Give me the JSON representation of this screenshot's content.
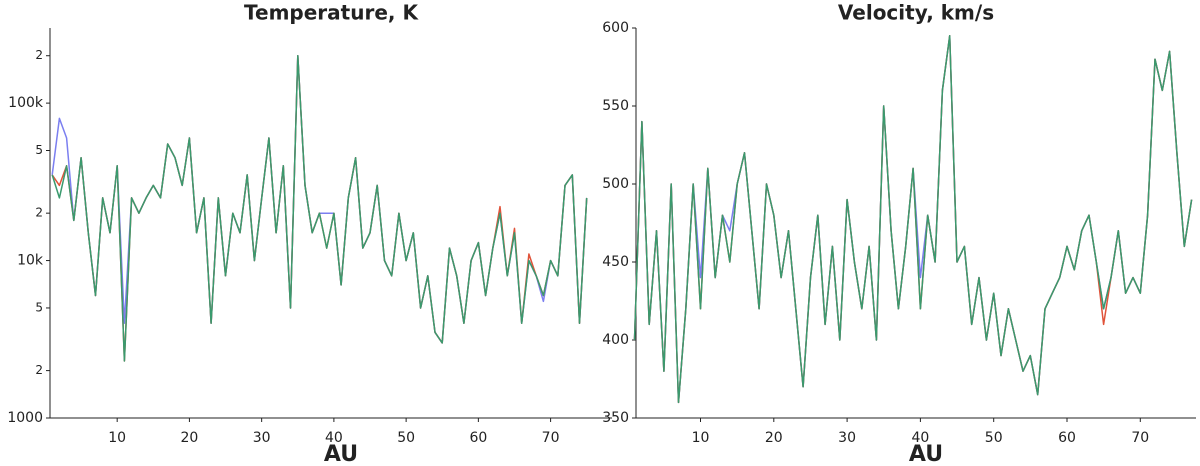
{
  "chart_data": [
    {
      "type": "line",
      "title": "Temperature, K",
      "xlabel": "AU",
      "ylog": true,
      "xlim": [
        0.7,
        78.5
      ],
      "xticks": [
        10,
        20,
        30,
        40,
        50,
        60,
        70
      ],
      "ylim": [
        1000,
        300000
      ],
      "yticks": [
        1000,
        {
          "value": 2000,
          "label": "2"
        },
        {
          "value": 5000,
          "label": "5"
        },
        {
          "value": 10000,
          "label": "10k"
        },
        {
          "value": 20000,
          "label": "2"
        },
        {
          "value": 50000,
          "label": "5"
        },
        {
          "value": 100000,
          "label": "100k"
        },
        {
          "value": 200000,
          "label": "2"
        }
      ],
      "x": [
        1,
        2,
        3,
        4,
        5,
        6,
        7,
        8,
        9,
        10,
        11,
        12,
        13,
        14,
        15,
        16,
        17,
        18,
        19,
        20,
        21,
        22,
        23,
        24,
        25,
        26,
        27,
        28,
        29,
        30,
        31,
        32,
        33,
        34,
        35,
        36,
        37,
        38,
        39,
        40,
        41,
        42,
        43,
        44,
        45,
        46,
        47,
        48,
        49,
        50,
        51,
        52,
        53,
        54,
        55,
        56,
        57,
        58,
        59,
        60,
        61,
        62,
        63,
        64,
        65,
        66,
        67,
        68,
        69,
        70,
        71,
        72,
        73,
        74,
        75
      ],
      "series": [
        {
          "color": "#7b7ff0",
          "values": [
            35000,
            80000,
            60000,
            18000,
            45000,
            15000,
            6000,
            25000,
            15000,
            40000,
            4000,
            25000,
            20000,
            25000,
            30000,
            25000,
            55000,
            45000,
            30000,
            60000,
            15000,
            25000,
            4000,
            25000,
            8000,
            20000,
            15000,
            35000,
            10000,
            25000,
            60000,
            15000,
            40000,
            5000,
            200000,
            30000,
            15000,
            20000,
            20000,
            20000,
            7000,
            25000,
            45000,
            12000,
            15000,
            30000,
            10000,
            8000,
            20000,
            10000,
            15000,
            5000,
            8000,
            3500,
            3000,
            12000,
            8000,
            4000,
            10000,
            13000,
            6000,
            12000,
            20000,
            8000,
            15000,
            4000,
            10000,
            8000,
            5500,
            10000,
            8000,
            30000,
            35000,
            4000,
            25000
          ]
        },
        {
          "color": "#e0533a",
          "values": [
            35000,
            30000,
            40000,
            18000,
            45000,
            15000,
            6000,
            25000,
            15000,
            40000,
            2300,
            25000,
            20000,
            25000,
            30000,
            25000,
            55000,
            45000,
            30000,
            60000,
            15000,
            25000,
            4000,
            25000,
            8000,
            20000,
            15000,
            35000,
            10000,
            25000,
            60000,
            15000,
            40000,
            5000,
            200000,
            30000,
            15000,
            20000,
            12000,
            20000,
            7000,
            25000,
            45000,
            12000,
            15000,
            30000,
            10000,
            8000,
            20000,
            10000,
            15000,
            5000,
            8000,
            3500,
            3000,
            12000,
            8000,
            4000,
            10000,
            13000,
            6000,
            12000,
            22000,
            8000,
            16000,
            4000,
            11000,
            8000,
            6000,
            10000,
            8000,
            30000,
            35000,
            4000,
            25000
          ]
        },
        {
          "color": "#3a9a6e",
          "values": [
            35000,
            25000,
            40000,
            18000,
            45000,
            15000,
            6000,
            25000,
            15000,
            40000,
            2300,
            25000,
            20000,
            25000,
            30000,
            25000,
            55000,
            45000,
            30000,
            60000,
            15000,
            25000,
            4000,
            25000,
            8000,
            20000,
            15000,
            35000,
            10000,
            25000,
            60000,
            15000,
            40000,
            5000,
            200000,
            30000,
            15000,
            20000,
            12000,
            20000,
            7000,
            25000,
            45000,
            12000,
            15000,
            30000,
            10000,
            8000,
            20000,
            10000,
            15000,
            5000,
            8000,
            3500,
            3000,
            12000,
            8000,
            4000,
            10000,
            13000,
            6000,
            12000,
            20000,
            8000,
            15000,
            4000,
            10000,
            8000,
            6000,
            10000,
            8000,
            30000,
            35000,
            4000,
            25000
          ]
        }
      ]
    },
    {
      "type": "line",
      "title": "Velocity, km/s",
      "xlabel": "AU",
      "ylog": false,
      "xlim": [
        1.2,
        77.6
      ],
      "xticks": [
        10,
        20,
        30,
        40,
        50,
        60,
        70
      ],
      "ylim": [
        350,
        600
      ],
      "yticks": [
        350,
        400,
        450,
        500,
        550,
        600
      ],
      "x": [
        1,
        2,
        3,
        4,
        5,
        6,
        7,
        8,
        9,
        10,
        11,
        12,
        13,
        14,
        15,
        16,
        17,
        18,
        19,
        20,
        21,
        22,
        23,
        24,
        25,
        26,
        27,
        28,
        29,
        30,
        31,
        32,
        33,
        34,
        35,
        36,
        37,
        38,
        39,
        40,
        41,
        42,
        43,
        44,
        45,
        46,
        47,
        48,
        49,
        50,
        51,
        52,
        53,
        54,
        55,
        56,
        57,
        58,
        59,
        60,
        61,
        62,
        63,
        64,
        65,
        66,
        67,
        68,
        69,
        70,
        71,
        72,
        73,
        74,
        75,
        76,
        77
      ],
      "series": [
        {
          "color": "#7b7ff0",
          "values": [
            400,
            540,
            410,
            470,
            380,
            500,
            360,
            420,
            500,
            440,
            510,
            440,
            480,
            470,
            500,
            520,
            470,
            420,
            500,
            480,
            440,
            470,
            420,
            370,
            440,
            480,
            410,
            460,
            400,
            490,
            450,
            420,
            460,
            400,
            550,
            470,
            420,
            460,
            510,
            440,
            480,
            450,
            560,
            595,
            450,
            460,
            410,
            440,
            400,
            430,
            390,
            420,
            400,
            380,
            390,
            365,
            420,
            430,
            440,
            460,
            445,
            470,
            480,
            450,
            420,
            440,
            470,
            430,
            440,
            430,
            480,
            580,
            560,
            585,
            520,
            460,
            490
          ]
        },
        {
          "color": "#e0533a",
          "values": [
            400,
            540,
            410,
            470,
            380,
            500,
            360,
            420,
            500,
            420,
            510,
            440,
            480,
            450,
            500,
            520,
            470,
            420,
            500,
            480,
            440,
            470,
            420,
            370,
            440,
            480,
            410,
            460,
            400,
            490,
            450,
            420,
            460,
            400,
            550,
            470,
            420,
            460,
            510,
            420,
            480,
            450,
            560,
            595,
            450,
            460,
            410,
            440,
            400,
            430,
            390,
            420,
            400,
            380,
            390,
            365,
            420,
            430,
            440,
            460,
            445,
            470,
            480,
            450,
            410,
            440,
            470,
            430,
            440,
            430,
            480,
            580,
            560,
            585,
            520,
            460,
            490
          ]
        },
        {
          "color": "#3a9a6e",
          "values": [
            400,
            540,
            410,
            470,
            380,
            500,
            360,
            420,
            500,
            420,
            510,
            440,
            480,
            450,
            500,
            520,
            470,
            420,
            500,
            480,
            440,
            470,
            420,
            370,
            440,
            480,
            410,
            460,
            400,
            490,
            450,
            420,
            460,
            400,
            550,
            470,
            420,
            460,
            510,
            420,
            480,
            450,
            560,
            595,
            450,
            460,
            410,
            440,
            400,
            430,
            390,
            420,
            400,
            380,
            390,
            365,
            420,
            430,
            440,
            460,
            445,
            470,
            480,
            450,
            420,
            440,
            470,
            430,
            440,
            430,
            480,
            580,
            560,
            585,
            520,
            460,
            490
          ]
        }
      ]
    }
  ]
}
